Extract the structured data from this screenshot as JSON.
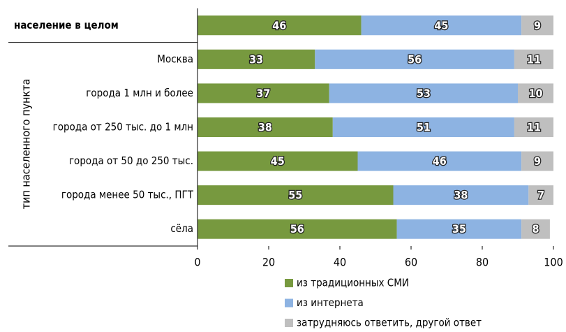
{
  "chart_data": {
    "type": "stacked_barh",
    "y_label": "тип населенного пункта",
    "categories": [
      "население в целом",
      "Москва",
      "города 1 млн и более",
      "города от 250 тыс. до 1 млн",
      "города от 50 до 250 тыс.",
      "города менее 50 тыс., ПГТ",
      "сёла"
    ],
    "series": [
      {
        "name": "из традиционных СМИ",
        "color": "#77993f",
        "values": [
          46,
          33,
          37,
          38,
          45,
          55,
          56
        ]
      },
      {
        "name": "из интернета",
        "color": "#8db3e2",
        "values": [
          45,
          56,
          53,
          51,
          46,
          38,
          35
        ]
      },
      {
        "name": "затрудняюсь ответить, другой ответ",
        "color": "#bfbfbf",
        "values": [
          9,
          11,
          10,
          11,
          9,
          7,
          8
        ]
      }
    ],
    "xlim": [
      0,
      100
    ],
    "xticks": [
      0,
      20,
      40,
      60,
      80,
      100
    ]
  }
}
